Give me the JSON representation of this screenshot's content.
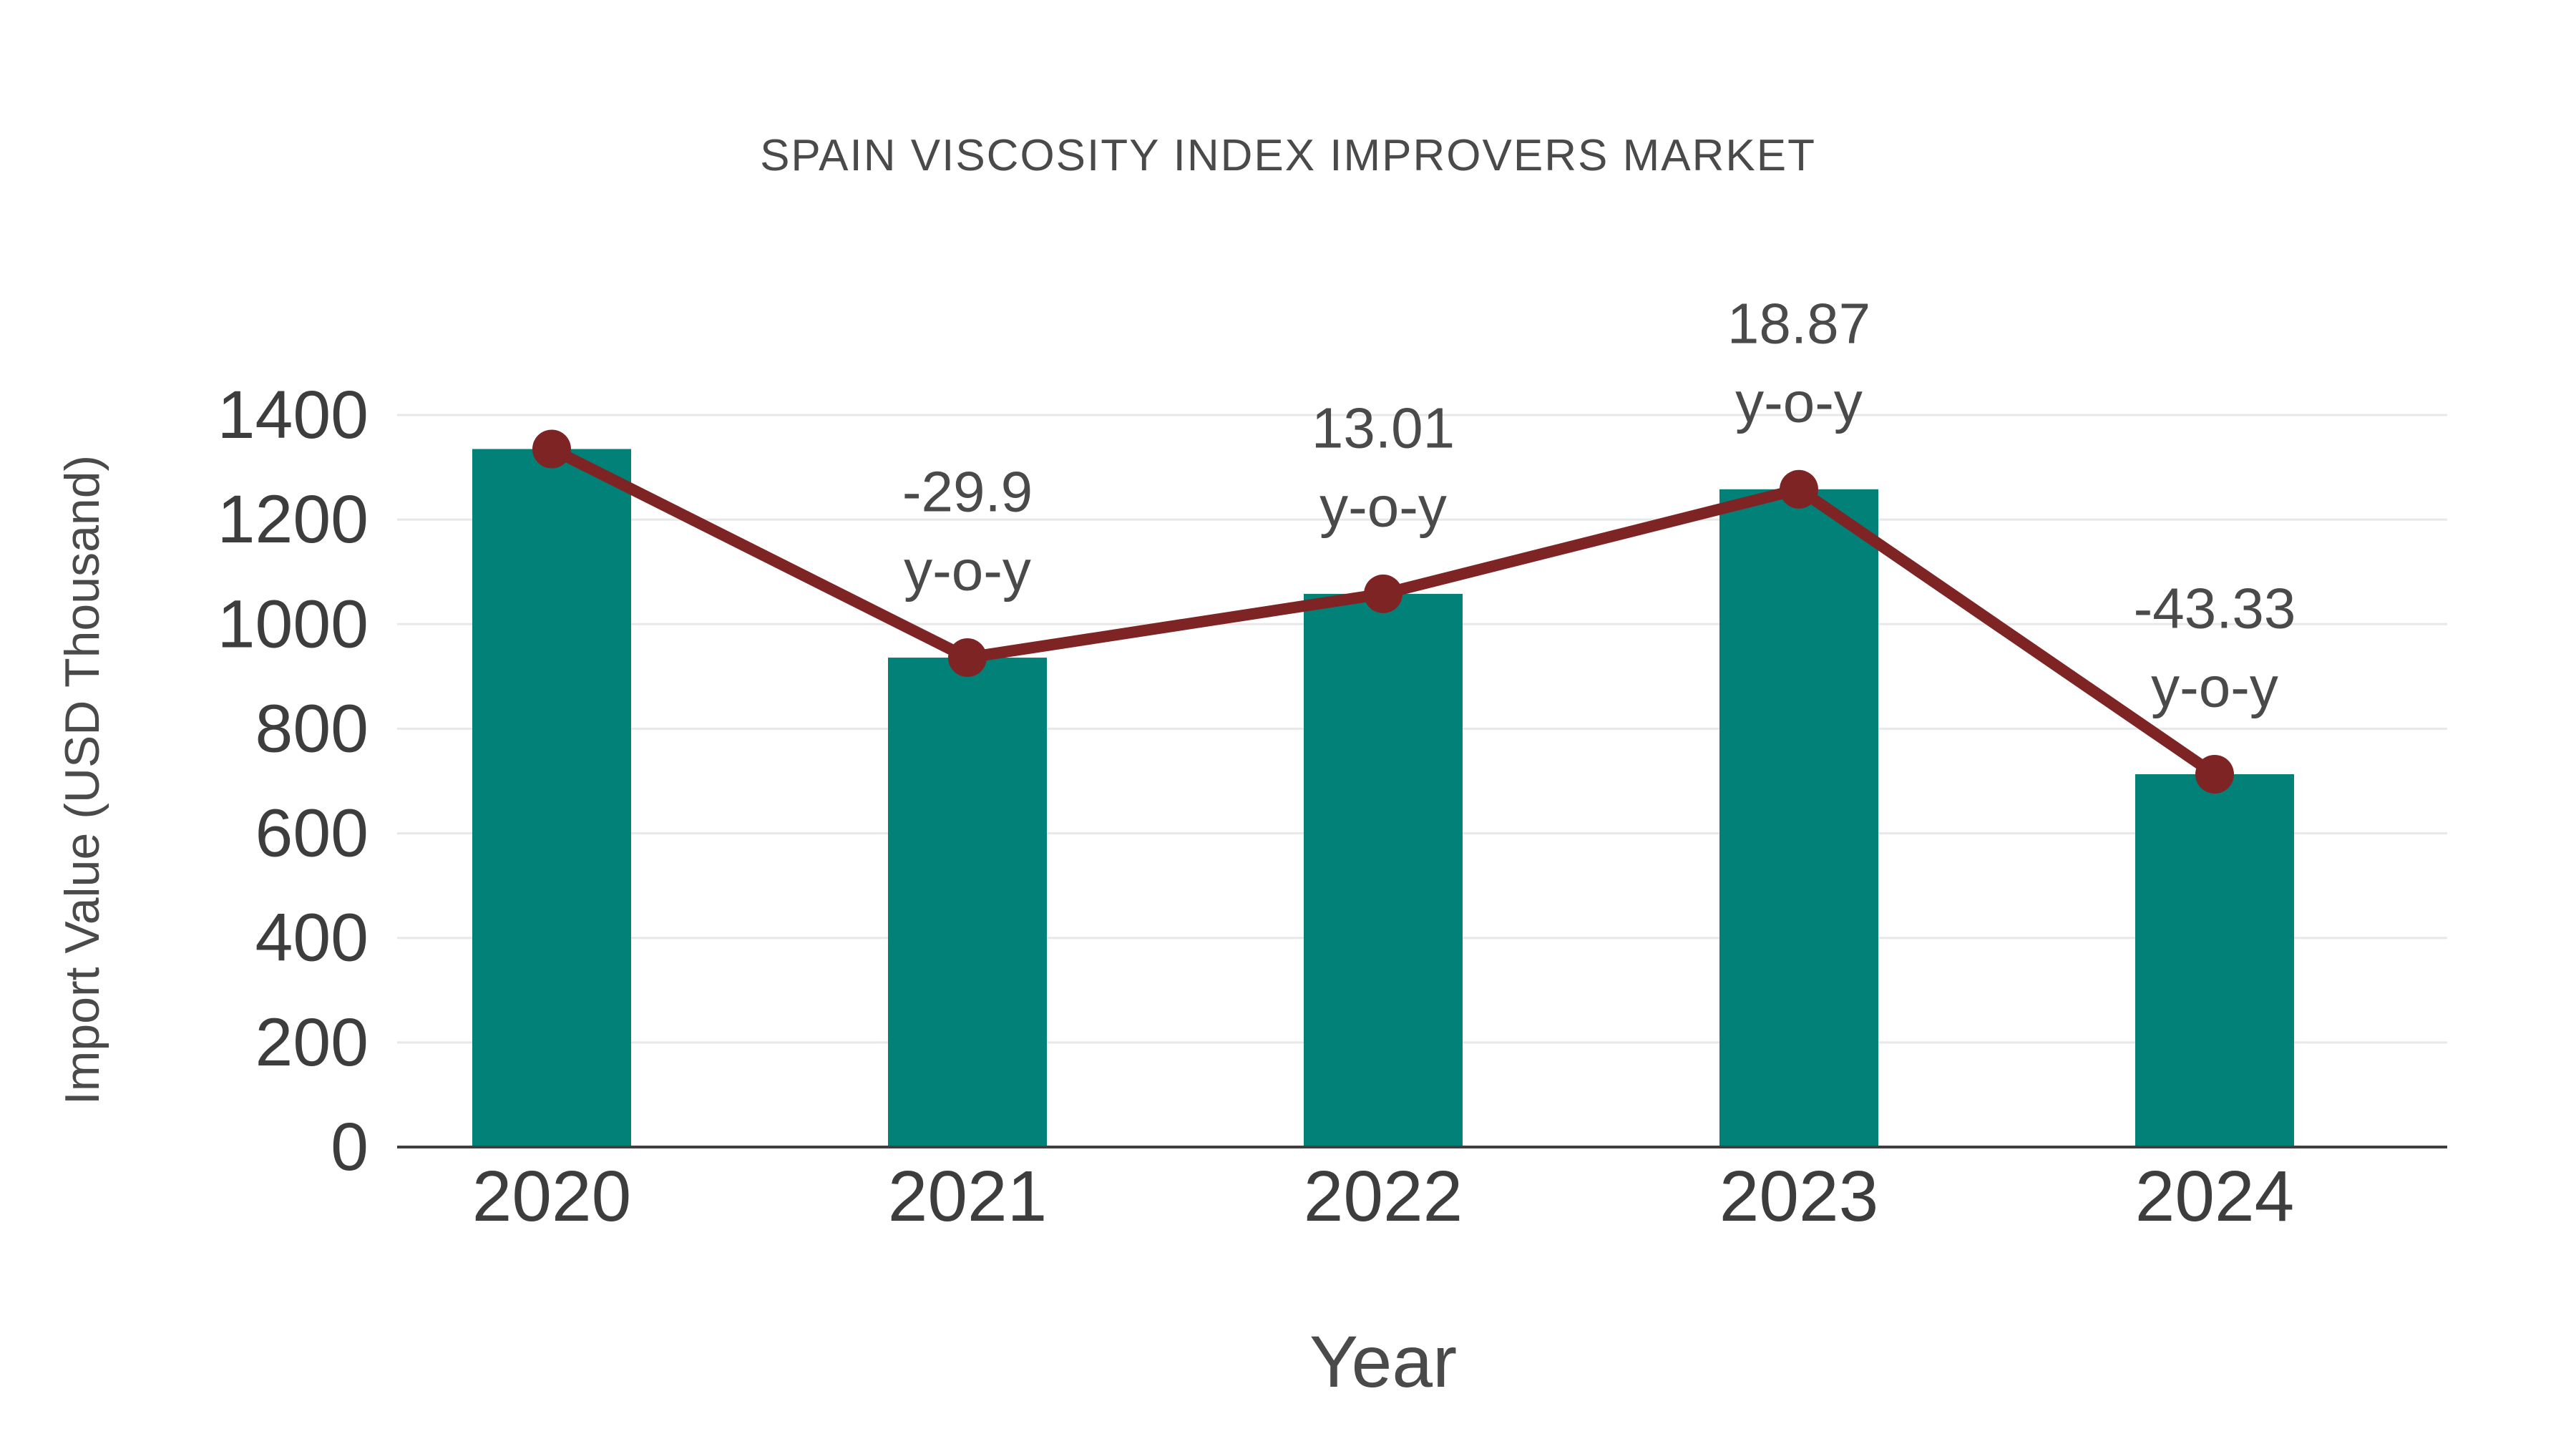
{
  "chart_data": {
    "type": "bar",
    "title": "SPAIN VISCOSITY INDEX IMPROVERS MARKET",
    "xlabel": "Year",
    "ylabel": "Import Value (USD Thousand)",
    "categories": [
      "2020",
      "2021",
      "2022",
      "2023",
      "2024"
    ],
    "series": [
      {
        "name": "Import Value (USD Thousand)",
        "type": "bar",
        "values": [
          1335,
          936,
          1058,
          1258,
          713
        ],
        "color": "#028179"
      },
      {
        "name": "y-o-y change (%)",
        "type": "line",
        "values": [
          null,
          -29.9,
          13.01,
          18.87,
          -43.33
        ],
        "color": "#7E2424",
        "plotted_at": "bar-top"
      }
    ],
    "ylim": [
      0,
      1400
    ],
    "yticks": [
      0,
      200,
      400,
      600,
      800,
      1000,
      1200,
      1400
    ],
    "grid": "horizontal",
    "legend": "none",
    "annotations": [
      {
        "category": "2021",
        "lines": [
          "-29.9",
          "y-o-y"
        ]
      },
      {
        "category": "2022",
        "lines": [
          "13.01",
          "y-o-y"
        ]
      },
      {
        "category": "2023",
        "lines": [
          "18.87",
          "y-o-y"
        ]
      },
      {
        "category": "2024",
        "lines": [
          "-43.33",
          "y-o-y"
        ]
      }
    ],
    "colors": {
      "text": "#4a4a4a",
      "tick_text": "#3d3d3d",
      "grid": "#e8e8e8",
      "axis": "#3f3f3f",
      "background": "#ffffff"
    }
  }
}
